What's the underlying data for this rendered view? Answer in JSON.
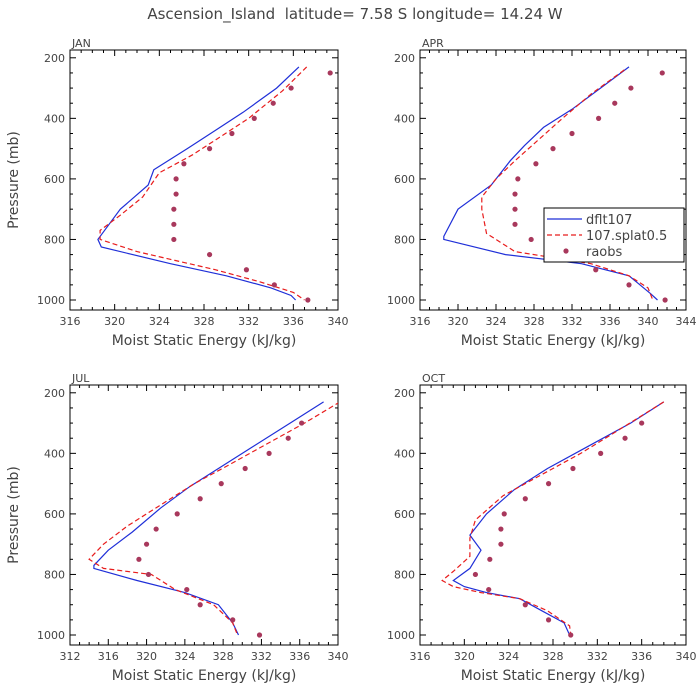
{
  "title": "Ascension_Island  latitude= 7.58 S longitude= 14.24 W",
  "legend": [
    "dflt107",
    "107.splat0.5",
    "raobs"
  ],
  "colors": {
    "model1": "#1f2fd8",
    "model2": "#e81c1c",
    "obs": "#a8385c",
    "axis": "#000000",
    "text": "#444444"
  },
  "chart_data": [
    {
      "type": "line",
      "panel": "JAN",
      "title": "JAN",
      "xlabel": "Moist Static Energy (kJ/kg)",
      "ylabel": "Pressure (mb)",
      "xlim": [
        316,
        340
      ],
      "ylim": [
        1000,
        200
      ],
      "y_reversed": true,
      "xticks": [
        316,
        320,
        324,
        328,
        332,
        336,
        340
      ],
      "xticklabels": [
        "316",
        "320",
        "324",
        "328",
        "332",
        "336",
        "340"
      ],
      "yticks": [
        200,
        400,
        600,
        800,
        1000
      ],
      "yticklabels": [
        "200",
        "400",
        "600",
        "800",
        "1000"
      ],
      "legend_shown": false,
      "series": [
        {
          "name": "dflt107",
          "style": "solid",
          "points": [
            [
              336.5,
              230
            ],
            [
              334.5,
              300
            ],
            [
              331.5,
              380
            ],
            [
              329,
              440
            ],
            [
              326.5,
              500
            ],
            [
              323.5,
              570
            ],
            [
              323,
              620
            ],
            [
              320.5,
              700
            ],
            [
              318.5,
              800
            ],
            [
              318.8,
              825
            ],
            [
              325,
              880
            ],
            [
              330,
              920
            ],
            [
              334,
              960
            ],
            [
              335.8,
              985
            ],
            [
              336.2,
              1000
            ]
          ]
        },
        {
          "name": "107.splat0.5",
          "style": "dashed",
          "points": [
            [
              337.2,
              230
            ],
            [
              335,
              310
            ],
            [
              332,
              400
            ],
            [
              329.5,
              460
            ],
            [
              327,
              520
            ],
            [
              324,
              580
            ],
            [
              322.5,
              660
            ],
            [
              320.5,
              720
            ],
            [
              318.7,
              770
            ],
            [
              318.7,
              800
            ],
            [
              322,
              840
            ],
            [
              329,
              900
            ],
            [
              333,
              940
            ],
            [
              336,
              975
            ],
            [
              337,
              1000
            ]
          ]
        },
        {
          "name": "raobs",
          "style": "markers",
          "points": [
            [
              339.3,
              250
            ],
            [
              335.8,
              300
            ],
            [
              334.2,
              350
            ],
            [
              332.5,
              400
            ],
            [
              330.5,
              450
            ],
            [
              328.5,
              500
            ],
            [
              326.2,
              550
            ],
            [
              325.5,
              600
            ],
            [
              325.5,
              650
            ],
            [
              325.3,
              700
            ],
            [
              325.3,
              750
            ],
            [
              325.3,
              800
            ],
            [
              328.5,
              850
            ],
            [
              331.8,
              900
            ],
            [
              334.3,
              950
            ],
            [
              337.3,
              1000
            ]
          ]
        }
      ]
    },
    {
      "type": "line",
      "panel": "APR",
      "title": "APR",
      "xlabel": "Moist Static Energy (kJ/kg)",
      "ylabel": "",
      "xlim": [
        316,
        344
      ],
      "ylim": [
        1000,
        200
      ],
      "y_reversed": true,
      "xticks": [
        316,
        320,
        324,
        328,
        332,
        336,
        340,
        344
      ],
      "xticklabels": [
        "316",
        "320",
        "324",
        "328",
        "332",
        "336",
        "340",
        "344"
      ],
      "yticks": [
        200,
        400,
        600,
        800,
        1000
      ],
      "yticklabels": [
        "200",
        "400",
        "600",
        "800",
        "1000"
      ],
      "legend_shown": true,
      "legend_position": "center-right",
      "series": [
        {
          "name": "dflt107",
          "style": "solid",
          "points": [
            [
              338,
              230
            ],
            [
              335,
              300
            ],
            [
              332,
              370
            ],
            [
              329,
              430
            ],
            [
              327,
              490
            ],
            [
              325.5,
              540
            ],
            [
              323.5,
              620
            ],
            [
              320,
              700
            ],
            [
              318.5,
              790
            ],
            [
              318.5,
              800
            ],
            [
              325,
              850
            ],
            [
              333,
              880
            ],
            [
              338,
              920
            ],
            [
              340.3,
              980
            ],
            [
              341,
              1000
            ]
          ]
        },
        {
          "name": "107.splat0.5",
          "style": "dashed",
          "points": [
            [
              337.5,
              240
            ],
            [
              334,
              320
            ],
            [
              331,
              400
            ],
            [
              328.5,
              470
            ],
            [
              326,
              540
            ],
            [
              324,
              600
            ],
            [
              322.5,
              660
            ],
            [
              322.5,
              700
            ],
            [
              323,
              780
            ],
            [
              326,
              840
            ],
            [
              334,
              880
            ],
            [
              338,
              920
            ],
            [
              340,
              960
            ],
            [
              340.5,
              1000
            ]
          ]
        },
        {
          "name": "raobs",
          "style": "markers",
          "points": [
            [
              341.5,
              250
            ],
            [
              338.2,
              300
            ],
            [
              336.5,
              350
            ],
            [
              334.8,
              400
            ],
            [
              332,
              450
            ],
            [
              330,
              500
            ],
            [
              328.2,
              550
            ],
            [
              326.3,
              600
            ],
            [
              326,
              650
            ],
            [
              326,
              700
            ],
            [
              326,
              750
            ],
            [
              327.7,
              800
            ],
            [
              331.3,
              850
            ],
            [
              334.5,
              900
            ],
            [
              338,
              950
            ],
            [
              341.8,
              1000
            ]
          ]
        }
      ]
    },
    {
      "type": "line",
      "panel": "JUL",
      "title": "JUL",
      "xlabel": "Moist Static Energy (kJ/kg)",
      "ylabel": "Pressure (mb)",
      "xlim": [
        312,
        340
      ],
      "ylim": [
        1000,
        200
      ],
      "y_reversed": true,
      "xticks": [
        312,
        316,
        320,
        324,
        328,
        332,
        336,
        340
      ],
      "xticklabels": [
        "312",
        "316",
        "320",
        "324",
        "328",
        "332",
        "336",
        "340"
      ],
      "yticks": [
        200,
        400,
        600,
        800,
        1000
      ],
      "yticklabels": [
        "200",
        "400",
        "600",
        "800",
        "1000"
      ],
      "legend_shown": false,
      "series": [
        {
          "name": "dflt107",
          "style": "solid",
          "points": [
            [
              338.5,
              230
            ],
            [
              335,
              300
            ],
            [
              331,
              380
            ],
            [
              327.5,
              450
            ],
            [
              324.5,
              510
            ],
            [
              321.5,
              580
            ],
            [
              318.5,
              660
            ],
            [
              316,
              720
            ],
            [
              314.5,
              770
            ],
            [
              314.5,
              780
            ],
            [
              319,
              820
            ],
            [
              324,
              860
            ],
            [
              327.5,
              900
            ],
            [
              329,
              960
            ],
            [
              329.6,
              1000
            ]
          ]
        },
        {
          "name": "107.splat0.5",
          "style": "dashed",
          "points": [
            [
              340.2,
              230
            ],
            [
              336.5,
              300
            ],
            [
              332.5,
              370
            ],
            [
              328.5,
              440
            ],
            [
              325,
              500
            ],
            [
              321.5,
              570
            ],
            [
              318,
              640
            ],
            [
              315.5,
              700
            ],
            [
              314,
              750
            ],
            [
              315.5,
              780
            ],
            [
              320.5,
              800
            ],
            [
              323,
              850
            ],
            [
              327,
              900
            ],
            [
              329,
              960
            ],
            [
              329.5,
              1000
            ]
          ]
        },
        {
          "name": "raobs",
          "style": "markers",
          "points": [
            [
              336.2,
              300
            ],
            [
              334.8,
              350
            ],
            [
              332.8,
              400
            ],
            [
              330.3,
              450
            ],
            [
              327.8,
              500
            ],
            [
              325.6,
              550
            ],
            [
              323.2,
              600
            ],
            [
              321,
              650
            ],
            [
              320,
              700
            ],
            [
              319.2,
              750
            ],
            [
              320.2,
              800
            ],
            [
              324.2,
              850
            ],
            [
              325.6,
              900
            ],
            [
              329,
              950
            ],
            [
              331.8,
              1000
            ]
          ]
        }
      ]
    },
    {
      "type": "line",
      "panel": "OCT",
      "title": "OCT",
      "xlabel": "Moist Static Energy (kJ/kg)",
      "ylabel": "",
      "xlim": [
        316,
        340
      ],
      "ylim": [
        1000,
        200
      ],
      "y_reversed": true,
      "xticks": [
        316,
        320,
        324,
        328,
        332,
        336,
        340
      ],
      "xticklabels": [
        "316",
        "320",
        "324",
        "328",
        "332",
        "336",
        "340"
      ],
      "yticks": [
        200,
        400,
        600,
        800,
        1000
      ],
      "yticklabels": [
        "200",
        "400",
        "600",
        "800",
        "1000"
      ],
      "legend_shown": false,
      "series": [
        {
          "name": "dflt107",
          "style": "solid",
          "points": [
            [
              338,
              230
            ],
            [
              335,
              300
            ],
            [
              331,
              380
            ],
            [
              327.5,
              450
            ],
            [
              324.5,
              520
            ],
            [
              322,
              600
            ],
            [
              320.5,
              670
            ],
            [
              321.5,
              720
            ],
            [
              320.5,
              780
            ],
            [
              319,
              820
            ],
            [
              320,
              840
            ],
            [
              322,
              860
            ],
            [
              325,
              880
            ],
            [
              327,
              920
            ],
            [
              329,
              960
            ],
            [
              329.5,
              1000
            ]
          ]
        },
        {
          "name": "107.splat0.5",
          "style": "dashed",
          "points": [
            [
              338,
              230
            ],
            [
              334.5,
              310
            ],
            [
              330.5,
              400
            ],
            [
              327,
              470
            ],
            [
              323.5,
              540
            ],
            [
              321,
              620
            ],
            [
              320.5,
              680
            ],
            [
              320.5,
              740
            ],
            [
              319,
              790
            ],
            [
              318,
              820
            ],
            [
              319,
              840
            ],
            [
              321.5,
              860
            ],
            [
              325,
              880
            ],
            [
              327.5,
              920
            ],
            [
              329.5,
              970
            ],
            [
              329.6,
              1000
            ]
          ]
        },
        {
          "name": "raobs",
          "style": "markers",
          "points": [
            [
              336,
              300
            ],
            [
              334.5,
              350
            ],
            [
              332.3,
              400
            ],
            [
              329.8,
              450
            ],
            [
              327.6,
              500
            ],
            [
              325.5,
              550
            ],
            [
              323.6,
              600
            ],
            [
              323.3,
              650
            ],
            [
              323.3,
              700
            ],
            [
              322.3,
              750
            ],
            [
              321,
              800
            ],
            [
              322.2,
              850
            ],
            [
              325.5,
              900
            ],
            [
              327.6,
              950
            ],
            [
              329.6,
              1000
            ]
          ]
        }
      ]
    }
  ]
}
